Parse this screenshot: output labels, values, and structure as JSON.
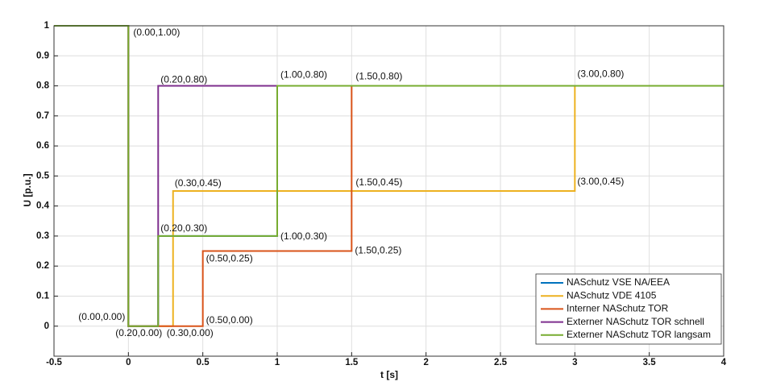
{
  "chart_data": {
    "type": "line",
    "step": true,
    "xlabel": "t [s]",
    "ylabel": "U [p.u.]",
    "xlim": [
      -0.5,
      4
    ],
    "ylim": [
      -0.1,
      1
    ],
    "xticks": [
      -0.5,
      0,
      0.5,
      1,
      1.5,
      2,
      2.5,
      3,
      3.5,
      4
    ],
    "yticks": [
      0,
      0.1,
      0.2,
      0.3,
      0.4,
      0.5,
      0.6,
      0.7,
      0.8,
      0.9,
      1
    ],
    "grid": true,
    "legend": "lower right",
    "series": [
      {
        "name": "NASchutz VSE NA/EEA",
        "color": "#0072BD",
        "x": [
          -0.5,
          0,
          0,
          0.2,
          0.2,
          1,
          1,
          4
        ],
        "values": [
          1,
          1,
          0,
          0,
          0.3,
          0.3,
          0.8,
          0.8
        ]
      },
      {
        "name": "NASchutz VDE 4105",
        "color": "#EDB120",
        "x": [
          -0.5,
          0,
          0,
          0.3,
          0.3,
          3,
          3,
          4
        ],
        "values": [
          1,
          1,
          0,
          0,
          0.45,
          0.45,
          0.8,
          0.8
        ]
      },
      {
        "name": "Interner NASchutz TOR",
        "color": "#D95319",
        "x": [
          -0.5,
          0,
          0,
          0.5,
          0.5,
          1.5,
          1.5,
          4
        ],
        "values": [
          1,
          1,
          0,
          0,
          0.25,
          0.25,
          0.8,
          0.8
        ]
      },
      {
        "name": "Externer NASchutz TOR schnell",
        "color": "#7E2F8E",
        "x": [
          -0.5,
          0,
          0,
          0.2,
          0.2,
          4
        ],
        "values": [
          1,
          1,
          0,
          0,
          0.8,
          0.8
        ]
      },
      {
        "name": "Externer NASchutz TOR langsam",
        "color": "#77AC30",
        "x": [
          -0.5,
          0,
          0,
          0.2,
          0.2,
          1,
          1,
          4
        ],
        "values": [
          1,
          1,
          0,
          0,
          0.3,
          0.3,
          0.8,
          0.8
        ]
      }
    ],
    "annotations": [
      "(0.00,1.00)",
      "(0.20,0.80)",
      "(1.00,0.80)",
      "(1.50,0.80)",
      "(3.00,0.80)",
      "(0.30,0.45)",
      "(1.50,0.45)",
      "(3.00,0.45)",
      "(0.20,0.30)",
      "(1.00,0.30)",
      "(0.50,0.25)",
      "(1.50,0.25)",
      "(0.00,0.00)",
      "(0.20,0.00)",
      "(0.30,0.00)",
      "(0.50,0.00)"
    ]
  }
}
